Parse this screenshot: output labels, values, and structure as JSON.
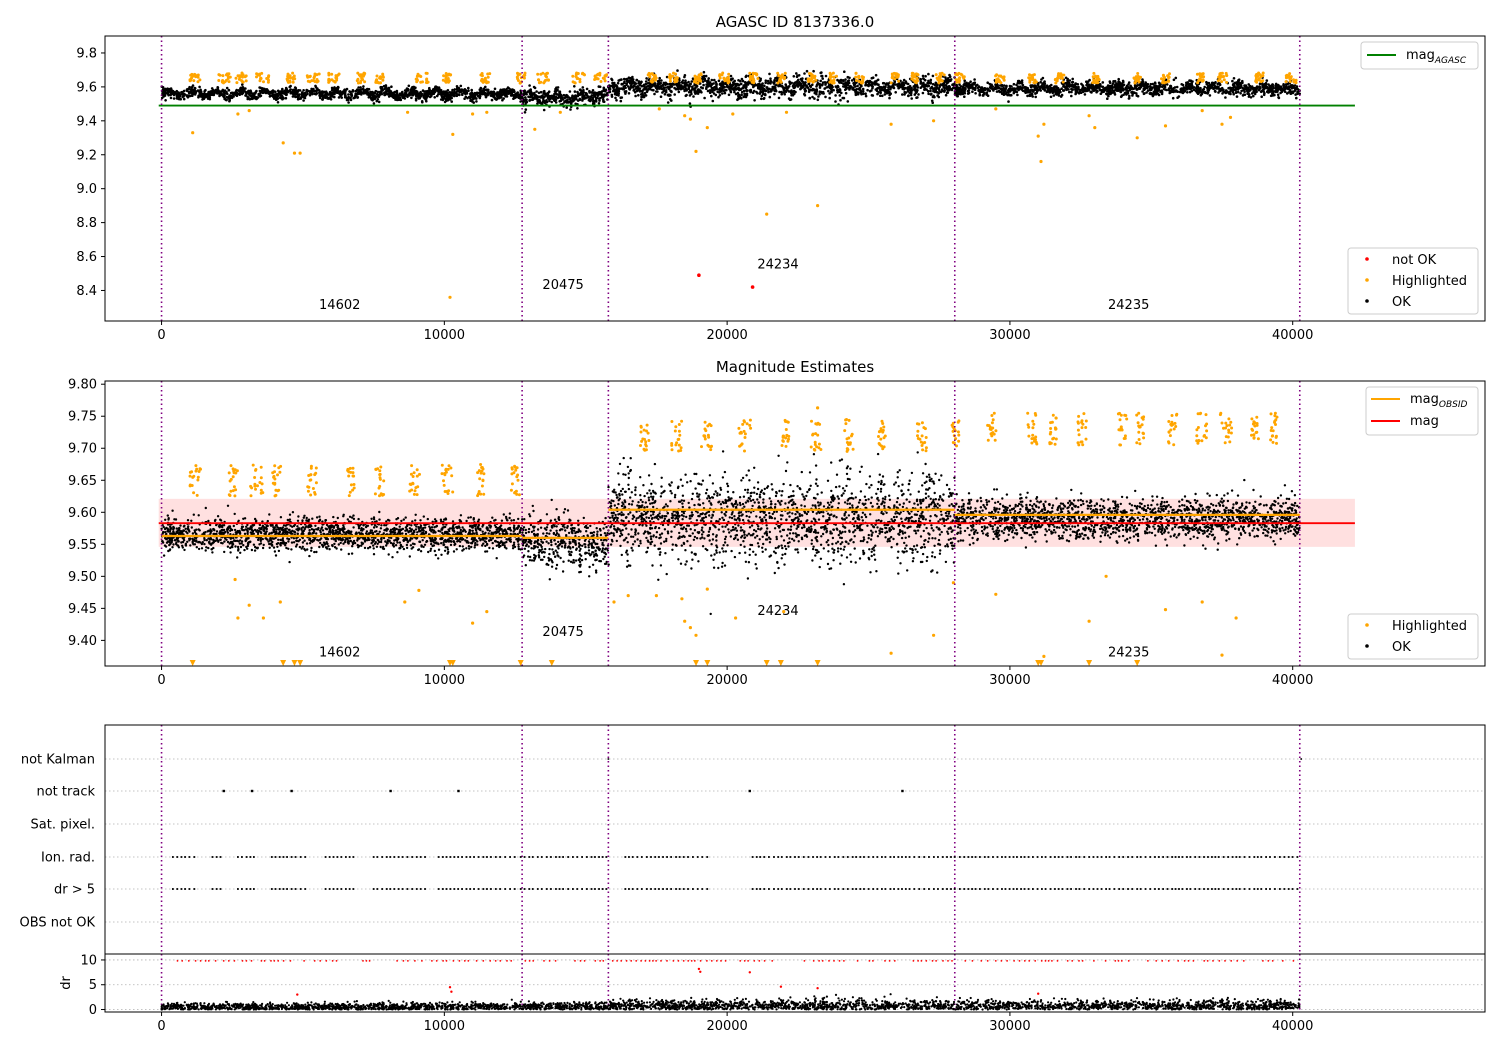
{
  "figure_title": "AGASC ID 8137336.0",
  "colors": {
    "ok": "#000000",
    "highlighted": "#ffa500",
    "not_ok": "#ff0000",
    "agasc_line": "#008000",
    "mag_line": "#ff0000",
    "mag_band": "#ffcccc",
    "obsid_line": "#ffa500",
    "obs_separator": "#800080",
    "grid": "#b0b0b0"
  },
  "chart_data": [
    {
      "id": "top",
      "type": "scatter",
      "title": "AGASC ID 8137336.0",
      "xlim": [
        -2000,
        46800
      ],
      "ylim": [
        8.22,
        9.9
      ],
      "xticks": [
        0,
        10000,
        20000,
        30000,
        40000
      ],
      "yticks": [
        8.4,
        8.6,
        8.8,
        9.0,
        9.2,
        9.4,
        9.6,
        9.8
      ],
      "observation_boundaries": [
        0,
        12750,
        15800,
        28050,
        40250
      ],
      "obsid_labels": [
        {
          "text": "14602",
          "x": 6300,
          "y": 8.29
        },
        {
          "text": "20475",
          "x": 14200,
          "y": 8.41
        },
        {
          "text": "24234",
          "x": 21800,
          "y": 8.53
        },
        {
          "text": "24235",
          "x": 34200,
          "y": 8.29
        }
      ],
      "mag_agasc": {
        "value": 9.49,
        "x": [
          -100,
          42200
        ]
      },
      "segments": [
        {
          "x": [
            0,
            12750
          ],
          "center": 9.56,
          "spread": 0.03
        },
        {
          "x": [
            12750,
            15800
          ],
          "center": 9.54,
          "spread": 0.05
        },
        {
          "x": [
            15800,
            28050
          ],
          "center": 9.6,
          "spread": 0.06
        },
        {
          "x": [
            28050,
            40250
          ],
          "center": 9.59,
          "spread": 0.04
        }
      ],
      "highlight_clusters_y": 9.64,
      "outliers_highlighted": [
        {
          "x": 1100,
          "y": 9.33
        },
        {
          "x": 2700,
          "y": 9.44
        },
        {
          "x": 3100,
          "y": 9.46
        },
        {
          "x": 4300,
          "y": 9.27
        },
        {
          "x": 4700,
          "y": 9.21
        },
        {
          "x": 4900,
          "y": 9.21
        },
        {
          "x": 8700,
          "y": 9.45
        },
        {
          "x": 10300,
          "y": 9.32
        },
        {
          "x": 10200,
          "y": 8.36
        },
        {
          "x": 11000,
          "y": 9.44
        },
        {
          "x": 11500,
          "y": 9.45
        },
        {
          "x": 13200,
          "y": 9.35
        },
        {
          "x": 14100,
          "y": 9.45
        },
        {
          "x": 17600,
          "y": 9.47
        },
        {
          "x": 18500,
          "y": 9.43
        },
        {
          "x": 18700,
          "y": 9.41
        },
        {
          "x": 18900,
          "y": 9.22
        },
        {
          "x": 19300,
          "y": 9.36
        },
        {
          "x": 20200,
          "y": 9.44
        },
        {
          "x": 21400,
          "y": 8.85
        },
        {
          "x": 22100,
          "y": 9.45
        },
        {
          "x": 23200,
          "y": 8.9
        },
        {
          "x": 25800,
          "y": 9.38
        },
        {
          "x": 27300,
          "y": 9.4
        },
        {
          "x": 29500,
          "y": 9.47
        },
        {
          "x": 31000,
          "y": 9.31
        },
        {
          "x": 31100,
          "y": 9.16
        },
        {
          "x": 31200,
          "y": 9.38
        },
        {
          "x": 32800,
          "y": 9.43
        },
        {
          "x": 33000,
          "y": 9.36
        },
        {
          "x": 34500,
          "y": 9.3
        },
        {
          "x": 35500,
          "y": 9.37
        },
        {
          "x": 36800,
          "y": 9.46
        },
        {
          "x": 37500,
          "y": 9.38
        },
        {
          "x": 37800,
          "y": 9.42
        }
      ],
      "outliers_not_ok": [
        {
          "x": 19000,
          "y": 8.49
        },
        {
          "x": 20900,
          "y": 8.42
        }
      ],
      "legend_lines": [
        {
          "label": "mag",
          "sub": "AGASC",
          "color": "#008000"
        }
      ],
      "legend_points": [
        {
          "label": "not OK",
          "color": "#ff0000"
        },
        {
          "label": "Highlighted",
          "color": "#ffa500"
        },
        {
          "label": "OK",
          "color": "#000000"
        }
      ]
    },
    {
      "id": "middle",
      "type": "scatter",
      "title": "Magnitude Estimates",
      "xlim": [
        -2000,
        46800
      ],
      "ylim": [
        9.36,
        9.805
      ],
      "xticks": [
        0,
        10000,
        20000,
        30000,
        40000
      ],
      "yticks": [
        9.4,
        9.45,
        9.5,
        9.55,
        9.6,
        9.65,
        9.7,
        9.75,
        9.8
      ],
      "ytick_labels": [
        "9.40",
        "9.45",
        "9.50",
        "9.55",
        "9.60",
        "9.65",
        "9.70",
        "9.75",
        "9.80"
      ],
      "observation_boundaries": [
        0,
        12750,
        15800,
        28050,
        40250
      ],
      "obsid_labels": [
        {
          "text": "14602",
          "x": 6300,
          "y": 9.375
        },
        {
          "text": "20475",
          "x": 14200,
          "y": 9.407
        },
        {
          "text": "24234",
          "x": 21800,
          "y": 9.44
        },
        {
          "text": "24235",
          "x": 34200,
          "y": 9.375
        }
      ],
      "mag": {
        "value": 9.583,
        "band": [
          9.546,
          9.621
        ],
        "x": [
          -100,
          42200
        ]
      },
      "mag_obsid": [
        {
          "x": [
            0,
            12750
          ],
          "value": 9.563
        },
        {
          "x": [
            12750,
            15800
          ],
          "value": 9.56
        },
        {
          "x": [
            15800,
            28050
          ],
          "value": 9.604
        },
        {
          "x": [
            28050,
            40250
          ],
          "value": 9.596
        }
      ],
      "segments": [
        {
          "x": [
            0,
            12750
          ],
          "center": 9.565,
          "spread": 0.028
        },
        {
          "x": [
            12750,
            15800
          ],
          "center": 9.555,
          "spread": 0.045
        },
        {
          "x": [
            15800,
            28050
          ],
          "center": 9.59,
          "spread": 0.05
        },
        {
          "x": [
            28050,
            40250
          ],
          "center": 9.59,
          "spread": 0.035
        }
      ],
      "highlight_clusters_y": 9.64,
      "outliers_highlighted": [
        {
          "x": 2600,
          "y": 9.495
        },
        {
          "x": 2700,
          "y": 9.435
        },
        {
          "x": 3100,
          "y": 9.455
        },
        {
          "x": 3600,
          "y": 9.435
        },
        {
          "x": 4200,
          "y": 9.46
        },
        {
          "x": 8600,
          "y": 9.46
        },
        {
          "x": 9100,
          "y": 9.478
        },
        {
          "x": 11000,
          "y": 9.427
        },
        {
          "x": 11500,
          "y": 9.445
        },
        {
          "x": 16000,
          "y": 9.46
        },
        {
          "x": 16500,
          "y": 9.47
        },
        {
          "x": 17500,
          "y": 9.47
        },
        {
          "x": 18400,
          "y": 9.465
        },
        {
          "x": 18500,
          "y": 9.43
        },
        {
          "x": 18700,
          "y": 9.42
        },
        {
          "x": 18900,
          "y": 9.408
        },
        {
          "x": 19300,
          "y": 9.48
        },
        {
          "x": 20300,
          "y": 9.435
        },
        {
          "x": 22000,
          "y": 9.445
        },
        {
          "x": 25800,
          "y": 9.38
        },
        {
          "x": 27300,
          "y": 9.408
        },
        {
          "x": 28000,
          "y": 9.49
        },
        {
          "x": 29500,
          "y": 9.472
        },
        {
          "x": 31200,
          "y": 9.375
        },
        {
          "x": 32800,
          "y": 9.43
        },
        {
          "x": 33400,
          "y": 9.5
        },
        {
          "x": 35500,
          "y": 9.448
        },
        {
          "x": 36800,
          "y": 9.46
        },
        {
          "x": 37500,
          "y": 9.377
        },
        {
          "x": 38000,
          "y": 9.435
        },
        {
          "x": 23200,
          "y": 9.763
        }
      ],
      "clipped_markers_x": [
        1100,
        4300,
        4700,
        4900,
        10200,
        10300,
        12700,
        13800,
        18900,
        19300,
        21400,
        21900,
        23200,
        31000,
        31100,
        32800,
        34500
      ],
      "legend_lines": [
        {
          "label": "mag",
          "sub": "OBSID",
          "color": "#ffa500"
        },
        {
          "label": "mag",
          "sub": "",
          "color": "#ff0000"
        }
      ],
      "legend_points": [
        {
          "label": "Highlighted",
          "color": "#ffa500"
        },
        {
          "label": "OK",
          "color": "#000000"
        }
      ]
    },
    {
      "id": "flags",
      "type": "scatter",
      "xlim": [
        -2000,
        46800
      ],
      "categories": [
        "not Kalman",
        "not track",
        "Sat. pixel.",
        "Ion. rad.",
        "dr > 5",
        "OBS not OK"
      ],
      "observation_boundaries": [
        0,
        12750,
        15800,
        28050,
        40250
      ],
      "not_track_x": [
        2200,
        3200,
        4600,
        8100,
        10500,
        20800,
        26200
      ],
      "not_kalman_x": [
        15800,
        40300
      ],
      "ion_rad_ranges": [
        [
          400,
          1200
        ],
        [
          1800,
          2200
        ],
        [
          2700,
          3400
        ],
        [
          3900,
          5100
        ],
        [
          5800,
          6900
        ],
        [
          7500,
          9400
        ],
        [
          9800,
          12600
        ],
        [
          12700,
          15800
        ],
        [
          16400,
          19400
        ],
        [
          20900,
          28050
        ],
        [
          28050,
          40250
        ]
      ]
    },
    {
      "id": "dr",
      "type": "scatter",
      "ylabel": "dr",
      "xlim": [
        -2000,
        46800
      ],
      "ylim": [
        -0.5,
        11.2
      ],
      "yticks": [
        0,
        5,
        10
      ],
      "observation_boundaries": [
        0,
        12750,
        15800,
        28050,
        40250
      ],
      "baseline_mean": 0.5,
      "red_level": 9.8,
      "red_outliers": [
        {
          "x": 4800,
          "y": 3.0
        },
        {
          "x": 10200,
          "y": 4.5
        },
        {
          "x": 10250,
          "y": 3.6
        },
        {
          "x": 19000,
          "y": 8.2
        },
        {
          "x": 19050,
          "y": 7.6
        },
        {
          "x": 20800,
          "y": 7.5
        },
        {
          "x": 21900,
          "y": 4.6
        },
        {
          "x": 23200,
          "y": 4.3
        },
        {
          "x": 31000,
          "y": 3.2
        }
      ]
    }
  ]
}
